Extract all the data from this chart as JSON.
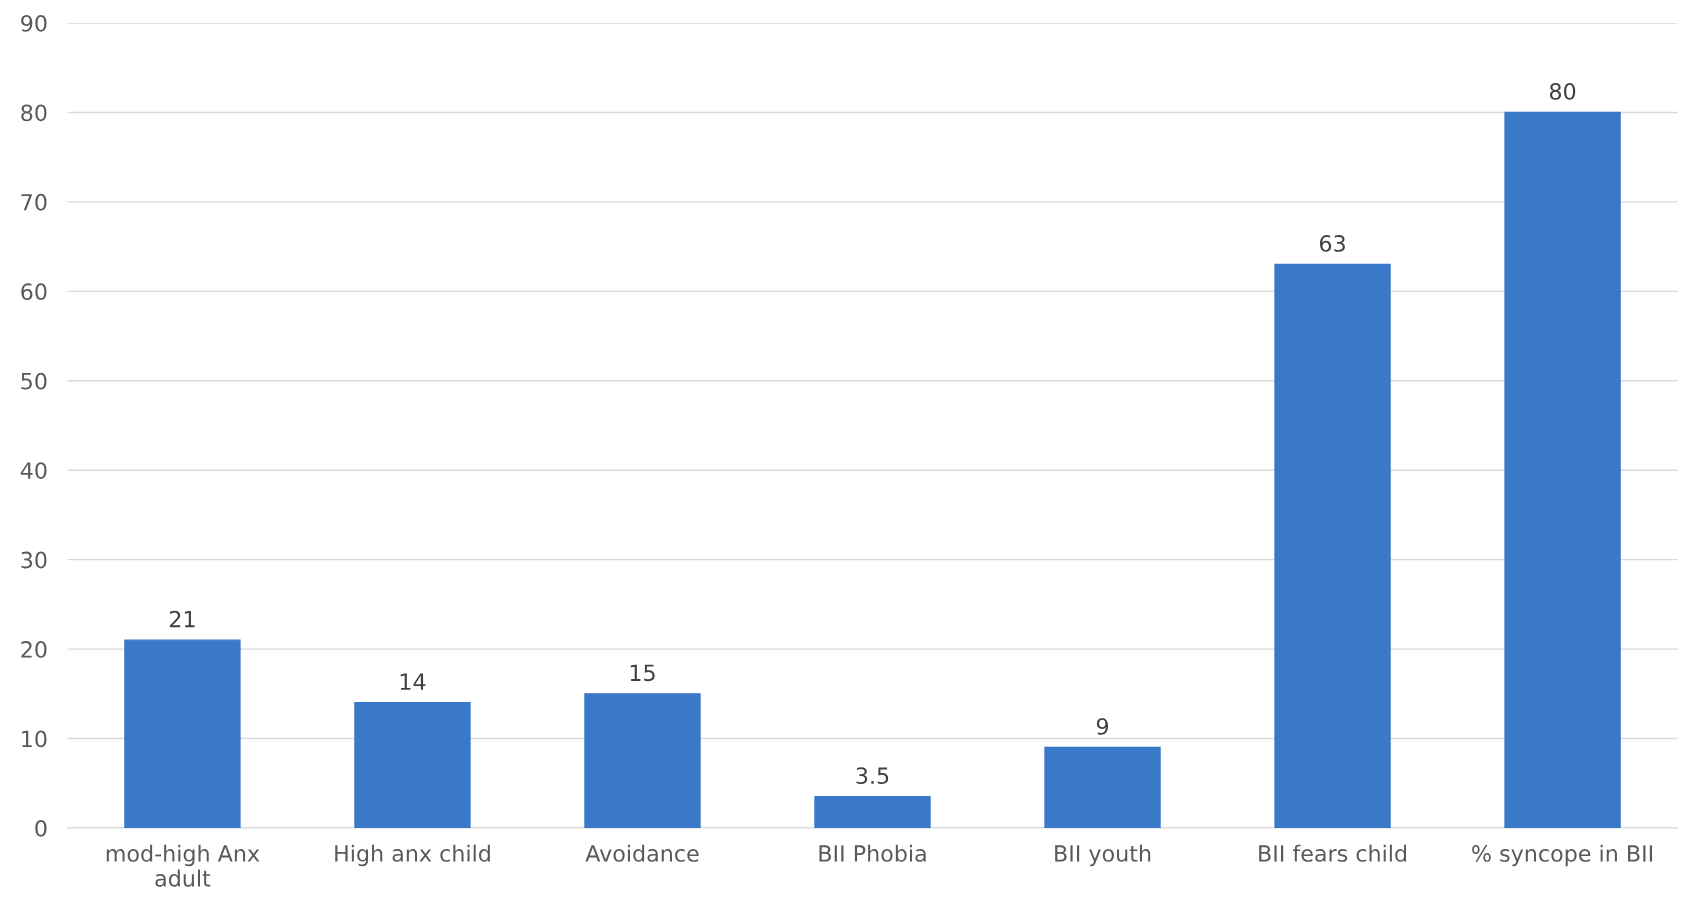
{
  "chart_data": {
    "type": "bar",
    "categories": [
      "mod-high Anx adult",
      "High anx child",
      "Avoidance",
      "BII Phobia",
      "BII youth",
      "BII fears child",
      "% syncope in BII"
    ],
    "values": [
      21,
      14,
      15,
      3.5,
      9,
      63,
      80
    ],
    "color": "#3a78c8",
    "ylim": [
      0,
      90
    ],
    "yticks": [
      0,
      10,
      20,
      30,
      40,
      50,
      60,
      70,
      80,
      90
    ],
    "grid": "y",
    "data_labels": true
  }
}
